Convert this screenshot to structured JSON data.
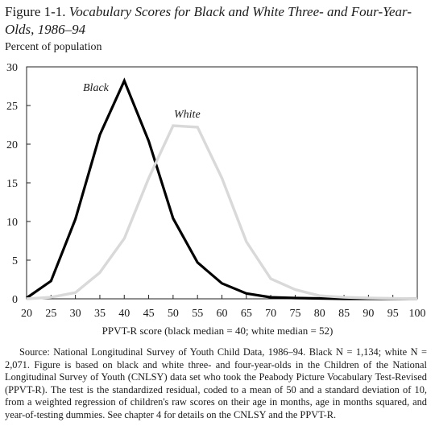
{
  "figure": {
    "number": "Figure 1-1.",
    "title": "Vocabulary Scores for Black and White Three- and Four-Year-Olds, 1986–94"
  },
  "chart_data": {
    "type": "line",
    "ylabel": "Percent of population",
    "xlabel": "PPVT-R score (black median = 40; white median = 52)",
    "xlim": [
      20,
      100
    ],
    "ylim": [
      0,
      30
    ],
    "x_ticks": [
      "20",
      "25",
      "30",
      "35",
      "40",
      "45",
      "50",
      "55",
      "60",
      "65",
      "70",
      "75",
      "80",
      "85",
      "90",
      "95",
      "100"
    ],
    "y_ticks": [
      "0",
      "5",
      "10",
      "15",
      "20",
      "25",
      "30"
    ],
    "x": [
      20,
      25,
      30,
      35,
      40,
      45,
      50,
      55,
      60,
      65,
      70,
      75,
      80,
      85,
      90,
      95,
      100
    ],
    "series": [
      {
        "name": "Black",
        "color": "#000000",
        "values": [
          0.1,
          2.3,
          10.3,
          21.2,
          28.2,
          20.4,
          10.4,
          4.7,
          2.0,
          0.7,
          0.2,
          0.1,
          0.05,
          0.0,
          0.0,
          0.0,
          0.0
        ]
      },
      {
        "name": "White",
        "color": "#d9d9d9",
        "values": [
          0.0,
          0.2,
          0.8,
          3.4,
          7.8,
          15.6,
          22.4,
          22.2,
          15.6,
          7.4,
          2.6,
          1.2,
          0.4,
          0.2,
          0.1,
          0.05,
          0.0
        ]
      }
    ],
    "series_labels": [
      "Black",
      "White"
    ],
    "grid": false
  },
  "source": "Source: National Longitudinal Survey of Youth Child Data, 1986–94. Black N = 1,134; white N = 2,071. Figure is based on black and white three- and four-year-olds in the Children of the National Longitudinal Survey of Youth (CNLSY) data set who took the Peabody Picture Vocabulary Test-Revised (PPVT-R). The test is the standardized residual, coded to a mean of 50 and a standard deviation of 10, from a weighted regression of children's raw scores on their age in months, age in months squared, and year-of-testing dummies. See chapter 4 for details on the CNLSY and the PPVT-R."
}
